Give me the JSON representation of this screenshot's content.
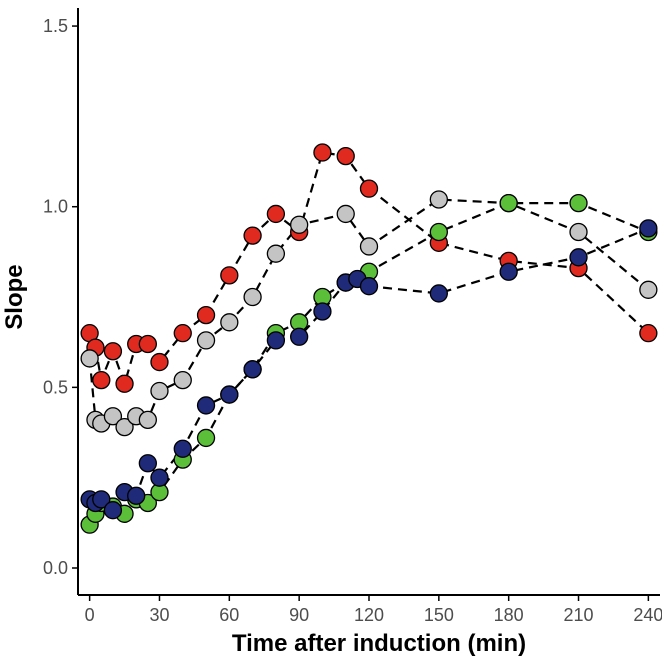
{
  "chart_data": {
    "type": "line",
    "title": "",
    "xlabel": "Time after induction (min)",
    "ylabel": "Slope",
    "xlim": [
      -5,
      245
    ],
    "ylim": [
      0,
      1.55
    ],
    "x_ticks": [
      0,
      30,
      60,
      90,
      120,
      150,
      180,
      210,
      240
    ],
    "y_ticks": [
      0.0,
      0.5,
      1.0,
      1.5
    ],
    "y_tick_labels": [
      "0.0",
      "0.5",
      "1.0",
      "1.5"
    ],
    "legend": "none",
    "grid": false,
    "series": [
      {
        "name": "red",
        "color": "#e02a20",
        "x": [
          0,
          2.5,
          5,
          10,
          15,
          20,
          25,
          30,
          40,
          50,
          60,
          70,
          80,
          90,
          100,
          110,
          120,
          150,
          180,
          210,
          240
        ],
        "y": [
          0.65,
          0.61,
          0.52,
          0.6,
          0.51,
          0.62,
          0.62,
          0.57,
          0.65,
          0.7,
          0.81,
          0.92,
          0.98,
          0.93,
          1.15,
          1.14,
          1.05,
          0.9,
          0.85,
          0.83,
          0.65
        ]
      },
      {
        "name": "grey",
        "color": "#c4c4c4",
        "x": [
          0,
          2.5,
          5,
          10,
          15,
          20,
          25,
          30,
          40,
          50,
          60,
          70,
          80,
          90,
          110,
          120,
          150,
          180,
          210,
          240
        ],
        "y": [
          0.58,
          0.41,
          0.4,
          0.42,
          0.39,
          0.42,
          0.41,
          0.49,
          0.52,
          0.63,
          0.68,
          0.75,
          0.87,
          0.95,
          0.98,
          0.89,
          1.02,
          1.01,
          0.93,
          0.77
        ]
      },
      {
        "name": "green",
        "color": "#5bbf3a",
        "x": [
          0,
          2.5,
          5,
          10,
          15,
          20,
          25,
          30,
          40,
          50,
          60,
          70,
          80,
          90,
          100,
          110,
          120,
          150,
          180,
          210,
          240
        ],
        "y": [
          0.12,
          0.15,
          0.18,
          0.17,
          0.15,
          0.19,
          0.18,
          0.21,
          0.3,
          0.36,
          0.48,
          0.55,
          0.65,
          0.68,
          0.75,
          0.79,
          0.82,
          0.93,
          1.01,
          1.01,
          0.93
        ]
      },
      {
        "name": "navy",
        "color": "#1f2a78",
        "x": [
          0,
          2.5,
          5,
          10,
          15,
          20,
          25,
          30,
          40,
          50,
          60,
          70,
          80,
          90,
          100,
          110,
          115,
          120,
          150,
          180,
          210,
          240
        ],
        "y": [
          0.19,
          0.18,
          0.19,
          0.16,
          0.21,
          0.2,
          0.29,
          0.25,
          0.33,
          0.45,
          0.48,
          0.55,
          0.63,
          0.64,
          0.71,
          0.79,
          0.8,
          0.78,
          0.76,
          0.82,
          0.86,
          0.94
        ]
      }
    ]
  }
}
